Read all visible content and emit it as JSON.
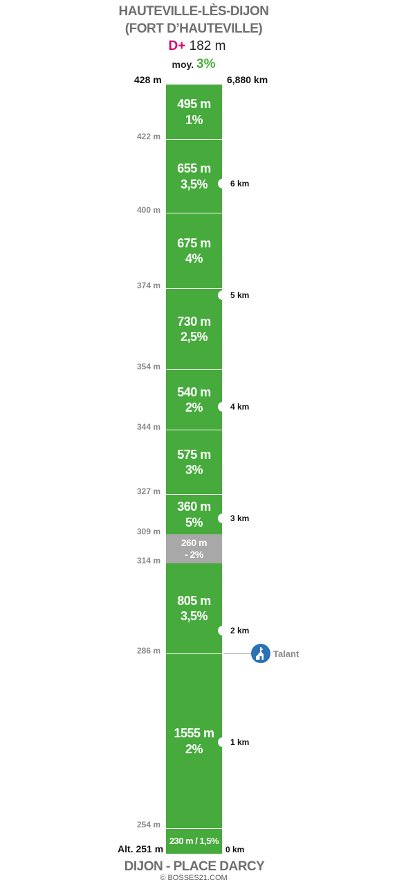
{
  "header": {
    "title_line1": "HAUTEVILLE-LÈS-DIJON",
    "title_line2": "(FORT D’HAUTEVILLE)",
    "gain_label": "D+",
    "gain_value": "182 m",
    "avg_label": "moy.",
    "avg_value": "3%"
  },
  "top": {
    "altitude": "428 m",
    "distance": "6,880 km"
  },
  "segments": [
    {
      "length": "495 m",
      "grade": "1%"
    },
    {
      "length": "655 m",
      "grade": "3,5%"
    },
    {
      "length": "675 m",
      "grade": "4%"
    },
    {
      "length": "730 m",
      "grade": "2,5%"
    },
    {
      "length": "540 m",
      "grade": "2%"
    },
    {
      "length": "575 m",
      "grade": "3%"
    },
    {
      "length": "360 m",
      "grade": "5%"
    },
    {
      "length": "260 m",
      "grade": "- 2%"
    },
    {
      "length": "805 m",
      "grade": "3,5%"
    },
    {
      "length": "1555 m",
      "grade": "2%"
    },
    {
      "length": "230 m / 1,5%"
    }
  ],
  "altitude_marks": [
    "422 m",
    "400 m",
    "374 m",
    "354 m",
    "344 m",
    "327 m",
    "309 m",
    "314 m",
    "286 m",
    "254 m"
  ],
  "km_marks": [
    "6 km",
    "5 km",
    "4 km",
    "3 km",
    "2 km",
    "1 km"
  ],
  "poi": {
    "label": "Talant",
    "icon": "church-icon"
  },
  "bottom": {
    "altitude": "Alt. 251 m",
    "distance": "0 km",
    "title": "DIJON - PLACE DARCY",
    "copyright": "© BOSSES21.COM"
  },
  "colors": {
    "climb": "#46aa3c",
    "descent": "#a8a8a8",
    "gain": "#d6086d",
    "poi": "#2a72b5"
  }
}
